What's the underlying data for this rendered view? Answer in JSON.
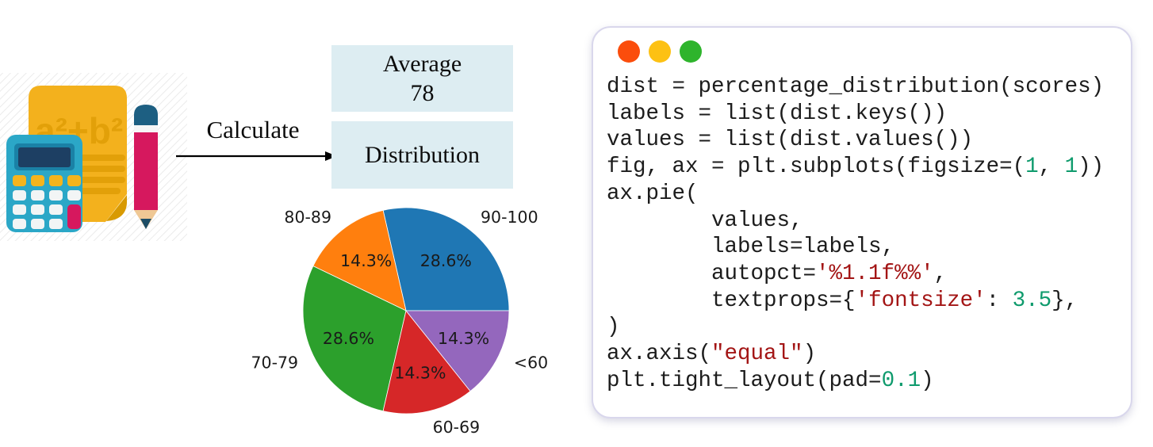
{
  "illustration": {
    "formula": "a²+b²"
  },
  "flow": {
    "arrow_label": "Calculate",
    "box_color": "#ddedf2",
    "boxes": [
      {
        "lines": [
          "Average",
          "78"
        ]
      },
      {
        "lines": [
          "Distribution"
        ]
      }
    ]
  },
  "chart_data": {
    "type": "pie",
    "labels": [
      "90-100",
      "80-89",
      "70-79",
      "60-69",
      "<60"
    ],
    "values": [
      28.6,
      14.3,
      28.6,
      14.3,
      14.3
    ],
    "pct_labels": [
      "28.6%",
      "14.3%",
      "28.6%",
      "14.3%",
      "14.3%"
    ],
    "colors": [
      "#1f77b4",
      "#ff7f0e",
      "#2ca02c",
      "#d62728",
      "#9467bd"
    ],
    "start_angle": 0,
    "counterclock": true,
    "legend": "none"
  },
  "code_panel": {
    "window_dots": [
      "#fb4d0c",
      "#fdc113",
      "#2eb42c"
    ],
    "colors": {
      "default": "#1c1c1c",
      "string": "#a31515",
      "number": "#0f9b6d"
    },
    "lines": [
      [
        {
          "t": "dist = percentage_distribution(scores)",
          "c": "d"
        }
      ],
      [
        {
          "t": "labels = list(dist.keys())",
          "c": "d"
        }
      ],
      [
        {
          "t": "values = list(dist.values())",
          "c": "d"
        }
      ],
      [
        {
          "t": "fig, ax = plt.subplots(figsize=(",
          "c": "d"
        },
        {
          "t": "1",
          "c": "n"
        },
        {
          "t": ", ",
          "c": "d"
        },
        {
          "t": "1",
          "c": "n"
        },
        {
          "t": "))",
          "c": "d"
        }
      ],
      [
        {
          "t": "ax.pie(",
          "c": "d"
        }
      ],
      [
        {
          "t": "        values,",
          "c": "d"
        }
      ],
      [
        {
          "t": "        labels=labels,",
          "c": "d"
        }
      ],
      [
        {
          "t": "        autopct=",
          "c": "d"
        },
        {
          "t": "'%1.1f%%'",
          "c": "s"
        },
        {
          "t": ",",
          "c": "d"
        }
      ],
      [
        {
          "t": "        textprops={",
          "c": "d"
        },
        {
          "t": "'fontsize'",
          "c": "s"
        },
        {
          "t": ": ",
          "c": "d"
        },
        {
          "t": "3.5",
          "c": "n"
        },
        {
          "t": "},",
          "c": "d"
        }
      ],
      [
        {
          "t": ")",
          "c": "d"
        }
      ],
      [
        {
          "t": "ax.axis(",
          "c": "d"
        },
        {
          "t": "\"equal\"",
          "c": "s"
        },
        {
          "t": ")",
          "c": "d"
        }
      ],
      [
        {
          "t": "plt.tight_layout(pad=",
          "c": "d"
        },
        {
          "t": "0.1",
          "c": "n"
        },
        {
          "t": ")",
          "c": "d"
        }
      ]
    ]
  }
}
